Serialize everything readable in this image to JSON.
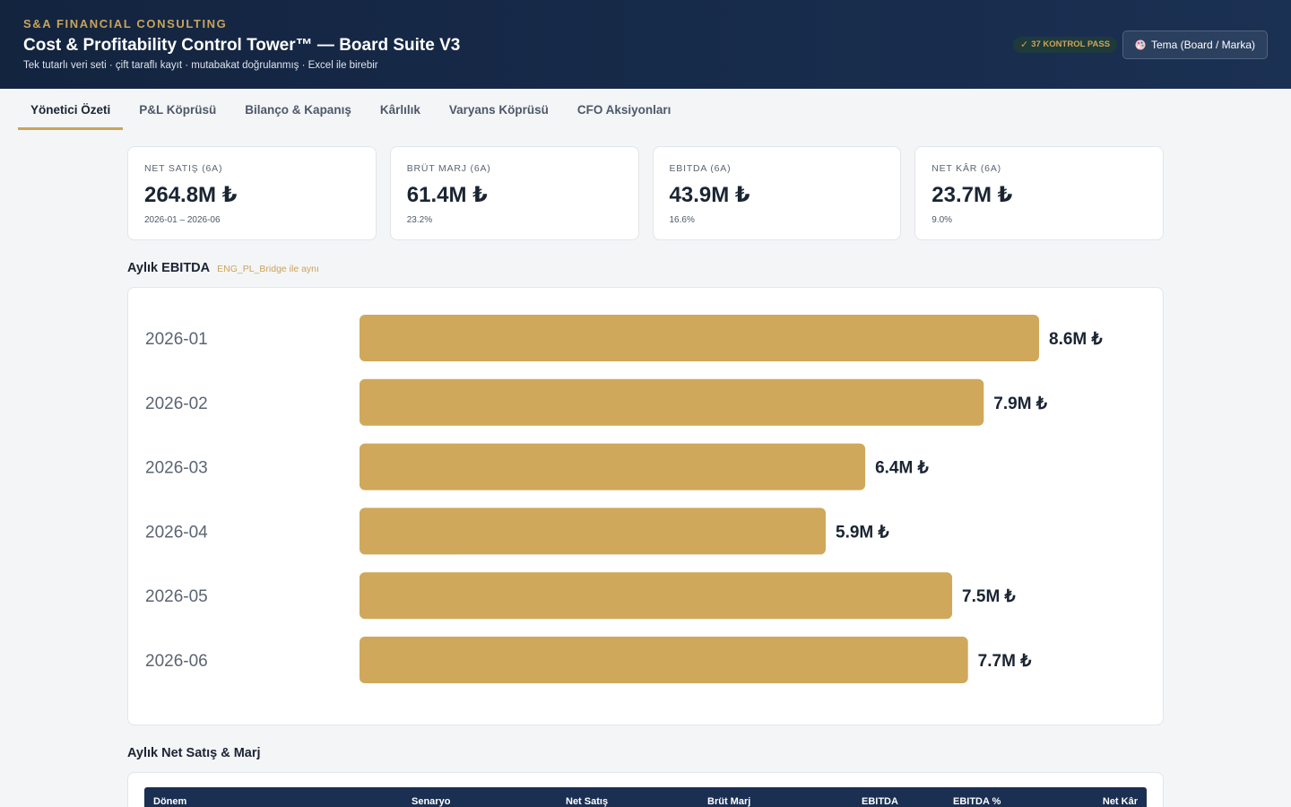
{
  "header": {
    "brand": "S&A FINANCIAL CONSULTING",
    "title": "Cost & Profitability Control Tower™ — Board Suite V3",
    "subtitle": "Tek tutarlı veri seti · çift taraflı kayıt · mutabakat doğrulanmış · Excel ile birebir",
    "pass_badge": "37 KONTROL PASS",
    "theme_button": "Tema (Board / Marka)",
    "colors": {
      "bg": "#172b4b",
      "accent": "#c9a45a"
    }
  },
  "tabs": [
    {
      "label": "Yönetici Özeti",
      "active": true
    },
    {
      "label": "P&L Köprüsü",
      "active": false
    },
    {
      "label": "Bilanço & Kapanış",
      "active": false
    },
    {
      "label": "Kârlılık",
      "active": false
    },
    {
      "label": "Varyans Köprüsü",
      "active": false
    },
    {
      "label": "CFO Aksiyonları",
      "active": false
    }
  ],
  "kpis": [
    {
      "label": "NET SATIŞ (6A)",
      "value": "264.8M ₺",
      "sub": "2026-01 – 2026-06"
    },
    {
      "label": "BRÜT MARJ (6A)",
      "value": "61.4M ₺",
      "sub": "23.2%"
    },
    {
      "label": "EBITDA (6A)",
      "value": "43.9M ₺",
      "sub": "16.6%"
    },
    {
      "label": "NET KÂR (6A)",
      "value": "23.7M ₺",
      "sub": "9.0%"
    }
  ],
  "ebitda_section": {
    "title": "Aylık EBITDA",
    "note": "ENG_PL_Bridge ile aynı"
  },
  "chart_data": {
    "type": "bar",
    "orientation": "horizontal",
    "categories": [
      "2026-01",
      "2026-02",
      "2026-03",
      "2026-04",
      "2026-05",
      "2026-06"
    ],
    "values": [
      8.6,
      7.9,
      6.4,
      5.9,
      7.5,
      7.7
    ],
    "value_labels": [
      "8.6M ₺",
      "7.9M ₺",
      "6.4M ₺",
      "5.9M ₺",
      "7.5M ₺",
      "7.7M ₺"
    ],
    "bar_color": "#cfa85b",
    "title": "",
    "xlabel": "",
    "ylabel": "",
    "xlim": [
      0,
      8.6
    ]
  },
  "table_section": {
    "title": "Aylık Net Satış & Marj",
    "columns": [
      "Dönem",
      "Senaryo",
      "Net Satış",
      "Brüt Marj",
      "EBITDA",
      "EBITDA %",
      "Net Kâr"
    ]
  }
}
